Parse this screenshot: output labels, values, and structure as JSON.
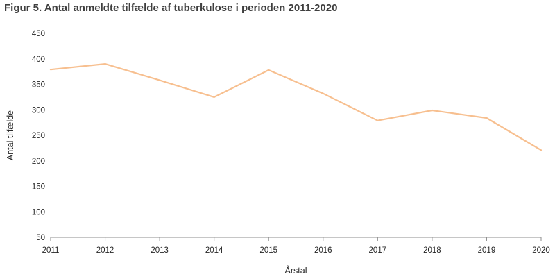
{
  "chart_data": {
    "type": "line",
    "title": "Figur 5. Antal anmeldte tilfælde af tuberkulose i perioden 2011-2020",
    "xlabel": "Årstal",
    "ylabel": "Antal tilfælde",
    "categories": [
      "2011",
      "2012",
      "2013",
      "2014",
      "2015",
      "2016",
      "2017",
      "2018",
      "2019",
      "2020"
    ],
    "series": [
      {
        "values": [
          379,
          390,
          358,
          325,
          378,
          332,
          279,
          299,
          284,
          221
        ]
      }
    ],
    "ylim": [
      50,
      450
    ],
    "yticks": [
      50,
      100,
      150,
      200,
      250,
      300,
      350,
      400,
      450
    ],
    "grid": false,
    "legend": "none",
    "line_color": "#f7bf8f",
    "axis_color": "#8c8c8c"
  }
}
